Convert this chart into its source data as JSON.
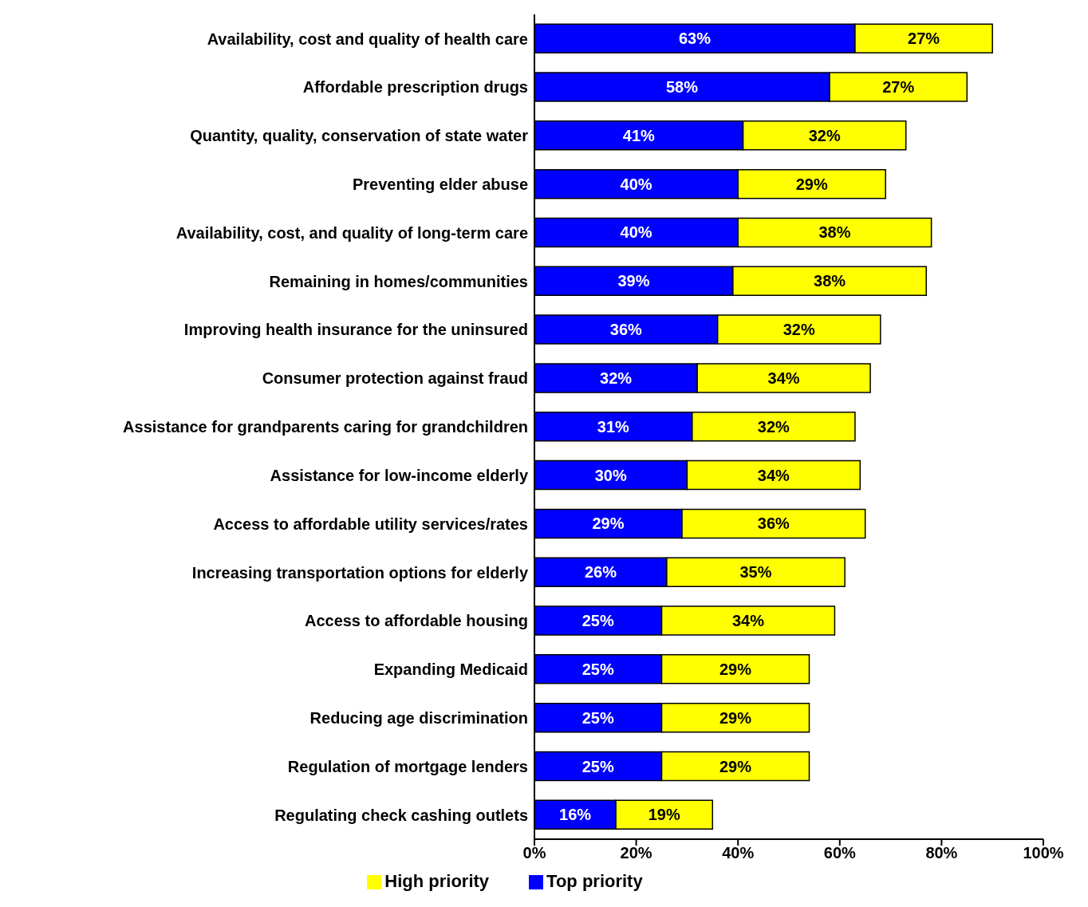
{
  "chart_data": {
    "type": "bar",
    "orientation": "horizontal",
    "stacked": true,
    "categories": [
      "Availability, cost and quality of health care",
      "Affordable prescription drugs",
      "Quantity, quality, conservation of state water",
      "Preventing elder abuse",
      "Availability, cost, and quality of long-term care",
      "Remaining in homes/communities",
      "Improving health insurance for the uninsured",
      "Consumer protection against fraud",
      "Assistance for grandparents caring for grandchildren",
      "Assistance for low-income elderly",
      "Access to affordable utility services/rates",
      "Increasing transportation options for elderly",
      "Access to affordable housing",
      "Expanding Medicaid",
      "Reducing age discrimination",
      "Regulation of mortgage lenders",
      "Regulating  check cashing outlets"
    ],
    "series": [
      {
        "name": "Top priority",
        "color": "#0000ff",
        "values": [
          63,
          58,
          41,
          40,
          40,
          39,
          36,
          32,
          31,
          30,
          29,
          26,
          25,
          25,
          25,
          25,
          16
        ],
        "value_labels": [
          "63%",
          "58%",
          "41%",
          "40%",
          "40%",
          "39%",
          "36%",
          "32%",
          "31%",
          "30%",
          "29%",
          "26%",
          "25%",
          "25%",
          "25%",
          "25%",
          "16%"
        ]
      },
      {
        "name": "High priority",
        "color": "#ffff00",
        "values": [
          27,
          27,
          32,
          29,
          38,
          38,
          32,
          34,
          32,
          34,
          36,
          35,
          34,
          29,
          29,
          29,
          19
        ],
        "value_labels": [
          "27%",
          "27%",
          "32%",
          "29%",
          "38%",
          "38%",
          "32%",
          "34%",
          "32%",
          "34%",
          "36%",
          "35%",
          "34%",
          "29%",
          "29%",
          "29%",
          "19%"
        ]
      }
    ],
    "xlim": [
      0,
      100
    ],
    "xticks": [
      {
        "value": 0,
        "label": "0%"
      },
      {
        "value": 20,
        "label": "20%"
      },
      {
        "value": 40,
        "label": "40%"
      },
      {
        "value": 60,
        "label": "60%"
      },
      {
        "value": 80,
        "label": "80%"
      },
      {
        "value": 100,
        "label": "100%"
      }
    ],
    "grid": false,
    "legend": "bottom"
  }
}
